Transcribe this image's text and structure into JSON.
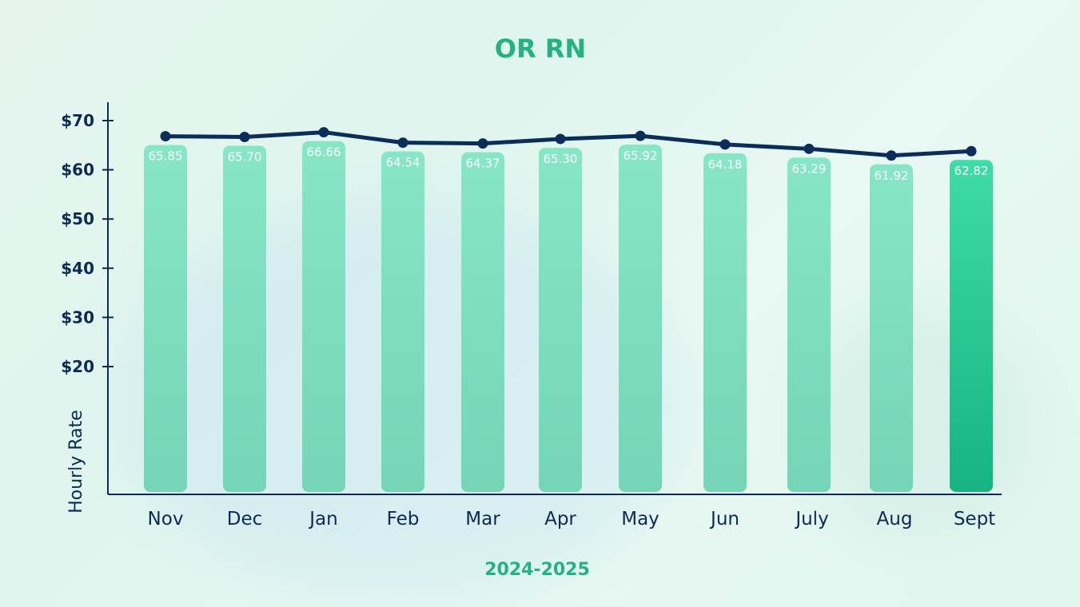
{
  "chart_data": {
    "type": "bar",
    "title": "OR RN",
    "xlabel": "2024-2025",
    "ylabel": "Hourly Rate",
    "categories": [
      "Nov",
      "Dec",
      "Jan",
      "Feb",
      "Mar",
      "Apr",
      "May",
      "Jun",
      "July",
      "Aug",
      "Sept"
    ],
    "values": [
      65.85,
      65.7,
      66.66,
      64.54,
      64.37,
      65.3,
      65.92,
      64.18,
      63.29,
      61.92,
      62.82
    ],
    "value_labels": [
      "65.85",
      "65.70",
      "66.66",
      "64.54",
      "64.37",
      "65.30",
      "65.92",
      "64.18",
      "63.29",
      "61.92",
      "62.82"
    ],
    "y_ticks": [
      20,
      30,
      40,
      50,
      60,
      70
    ],
    "y_tick_labels": [
      "$20",
      "$30",
      "$40",
      "$50",
      "$60",
      "$70"
    ],
    "overlay_line": true,
    "grid": false,
    "colors": {
      "bar": "#7fe3c2",
      "highlight_bar": "#1fbf8a",
      "line": "#0b2d5a",
      "title": "#25b283"
    }
  }
}
